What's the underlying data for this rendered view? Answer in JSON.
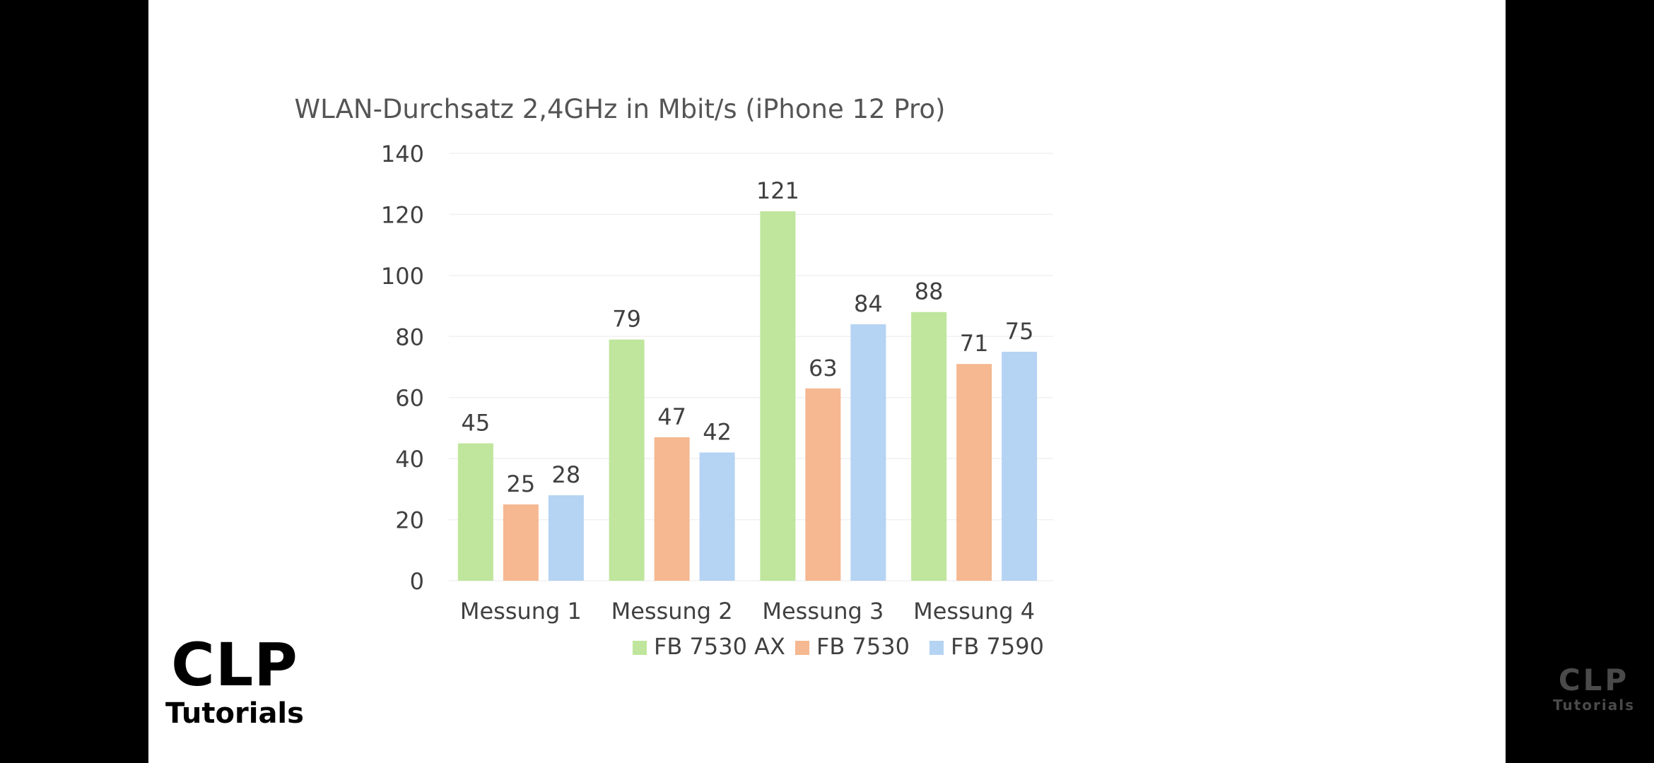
{
  "chart_data": {
    "type": "bar",
    "title": "WLAN-Durchsatz 2,4GHz in Mbit/s (iPhone 12 Pro)",
    "xlabel": "",
    "ylabel": "",
    "categories": [
      "Messung 1",
      "Messung 2",
      "Messung 3",
      "Messung 4"
    ],
    "series": [
      {
        "name": "FB 7530 AX",
        "color": "#bfe69c",
        "values": [
          45,
          79,
          121,
          88
        ]
      },
      {
        "name": "FB 7530",
        "color": "#f5b891",
        "values": [
          25,
          47,
          63,
          71
        ]
      },
      {
        "name": "FB 7590",
        "color": "#b5d3f3",
        "values": [
          28,
          42,
          84,
          75
        ]
      }
    ],
    "ylim": [
      0,
      140
    ],
    "yticks": [
      0,
      20,
      40,
      60,
      80,
      100,
      120,
      140
    ],
    "grid": true,
    "legend": "bottom",
    "data_labels": true
  },
  "watermark_left": {
    "main": "CLP",
    "sub": "Tutorials"
  },
  "watermark_right": {
    "main": "CLP",
    "sub": "Tutorials"
  },
  "colors": {
    "background": "#000000",
    "slide": "#ffffff",
    "text": "#404040",
    "grid": "#f0f0f0"
  }
}
